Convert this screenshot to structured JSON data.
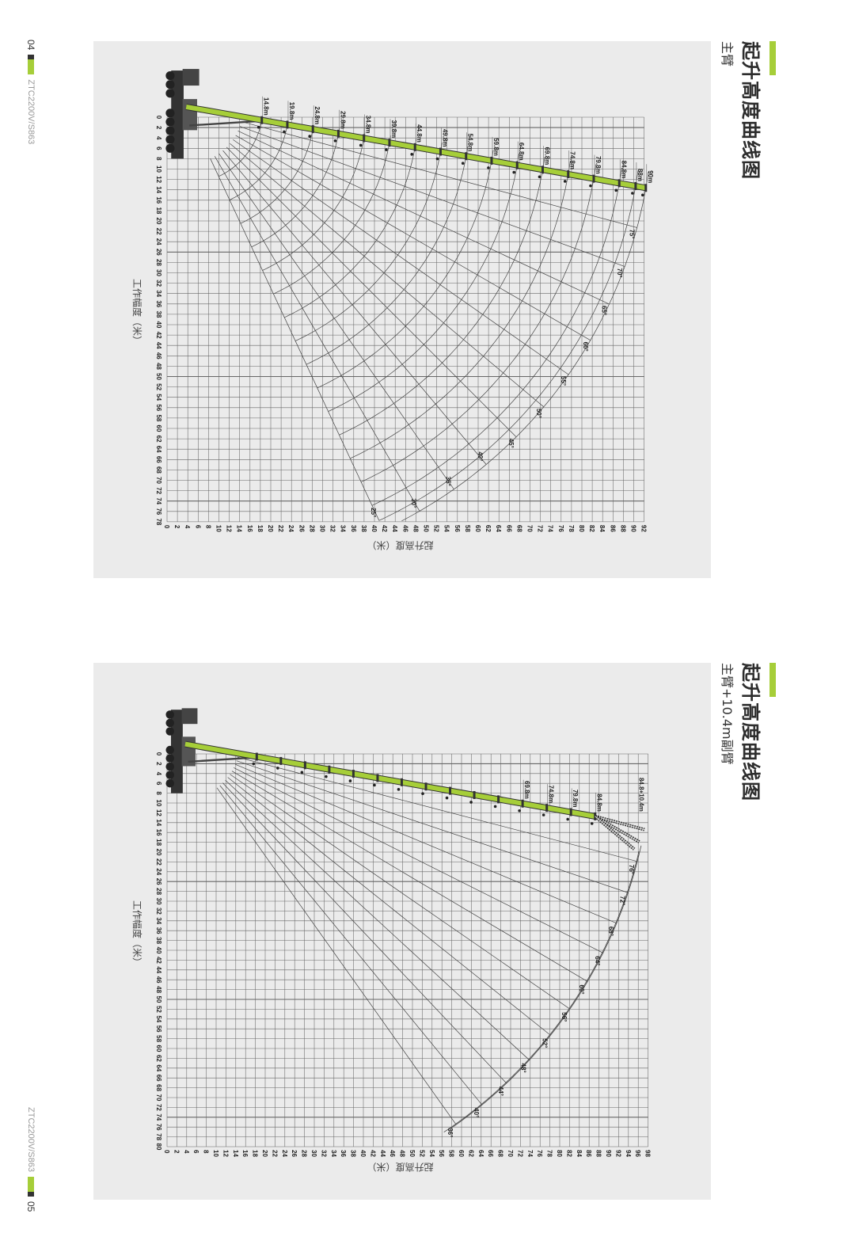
{
  "accent": "#a6ce39",
  "footer_left": {
    "number": "04",
    "model": "ZTC2200V/S863"
  },
  "footer_right": {
    "number": "05",
    "model": "ZTC2200V/S863"
  },
  "sections": [
    {
      "title": "起升高度曲线图",
      "subtitle": "主臂"
    },
    {
      "title": "起升高度曲线图",
      "subtitle": "主臂+10.4m副臂"
    }
  ],
  "chart_data": [
    {
      "type": "line",
      "xlabel": "工作幅度（米）",
      "ylabel": "起升高度（米）",
      "xlim": [
        0,
        78
      ],
      "ylim": [
        0,
        92
      ],
      "x_tick_step": 2,
      "y_tick_step": 2,
      "grid": true,
      "boom_lengths": [
        14.8,
        19.8,
        24.8,
        29.8,
        34.8,
        39.8,
        44.8,
        49.8,
        54.8,
        59.8,
        64.8,
        69.8,
        74.8,
        79.8,
        84.8,
        88,
        90
      ],
      "boom_labels": [
        "14.8m",
        "19.8m",
        "24.8m",
        "29.8m",
        "34.8m",
        "39.8m",
        "44.8m",
        "49.8m",
        "54.8m",
        "59.8m",
        "64.8m",
        "69.8m",
        "74.8m",
        "79.8m",
        "84.8m",
        "88m",
        "90m"
      ],
      "angles": [
        75,
        70,
        65,
        60,
        55,
        50,
        45,
        40,
        35,
        30,
        25
      ],
      "angle_labels": [
        "75°",
        "70°",
        "65°",
        "60°",
        "55°",
        "50°",
        "45°",
        "40°",
        "35°",
        "30°",
        "25°"
      ]
    },
    {
      "type": "line",
      "xlabel": "工作幅度（米）",
      "ylabel": "起升高度（米）",
      "xlim": [
        0,
        80
      ],
      "ylim": [
        0,
        98
      ],
      "x_tick_step": 2,
      "y_tick_step": 2,
      "grid": true,
      "main_boom_length": 84.8,
      "jib_length": 10.4,
      "boom_lengths": [
        69.8,
        74.8,
        79.8,
        84.8
      ],
      "boom_labels": [
        "69.8m",
        "74.8m",
        "79.8m",
        "84.8m"
      ],
      "jib_label": "84.8+10.4m",
      "angles": [
        76,
        72,
        68,
        64,
        60,
        56,
        52,
        48,
        44,
        40,
        36
      ],
      "angle_labels": [
        "76°",
        "72°",
        "68°",
        "64°",
        "60°",
        "56°",
        "52°",
        "48°",
        "44°",
        "40°",
        "36°"
      ]
    }
  ]
}
